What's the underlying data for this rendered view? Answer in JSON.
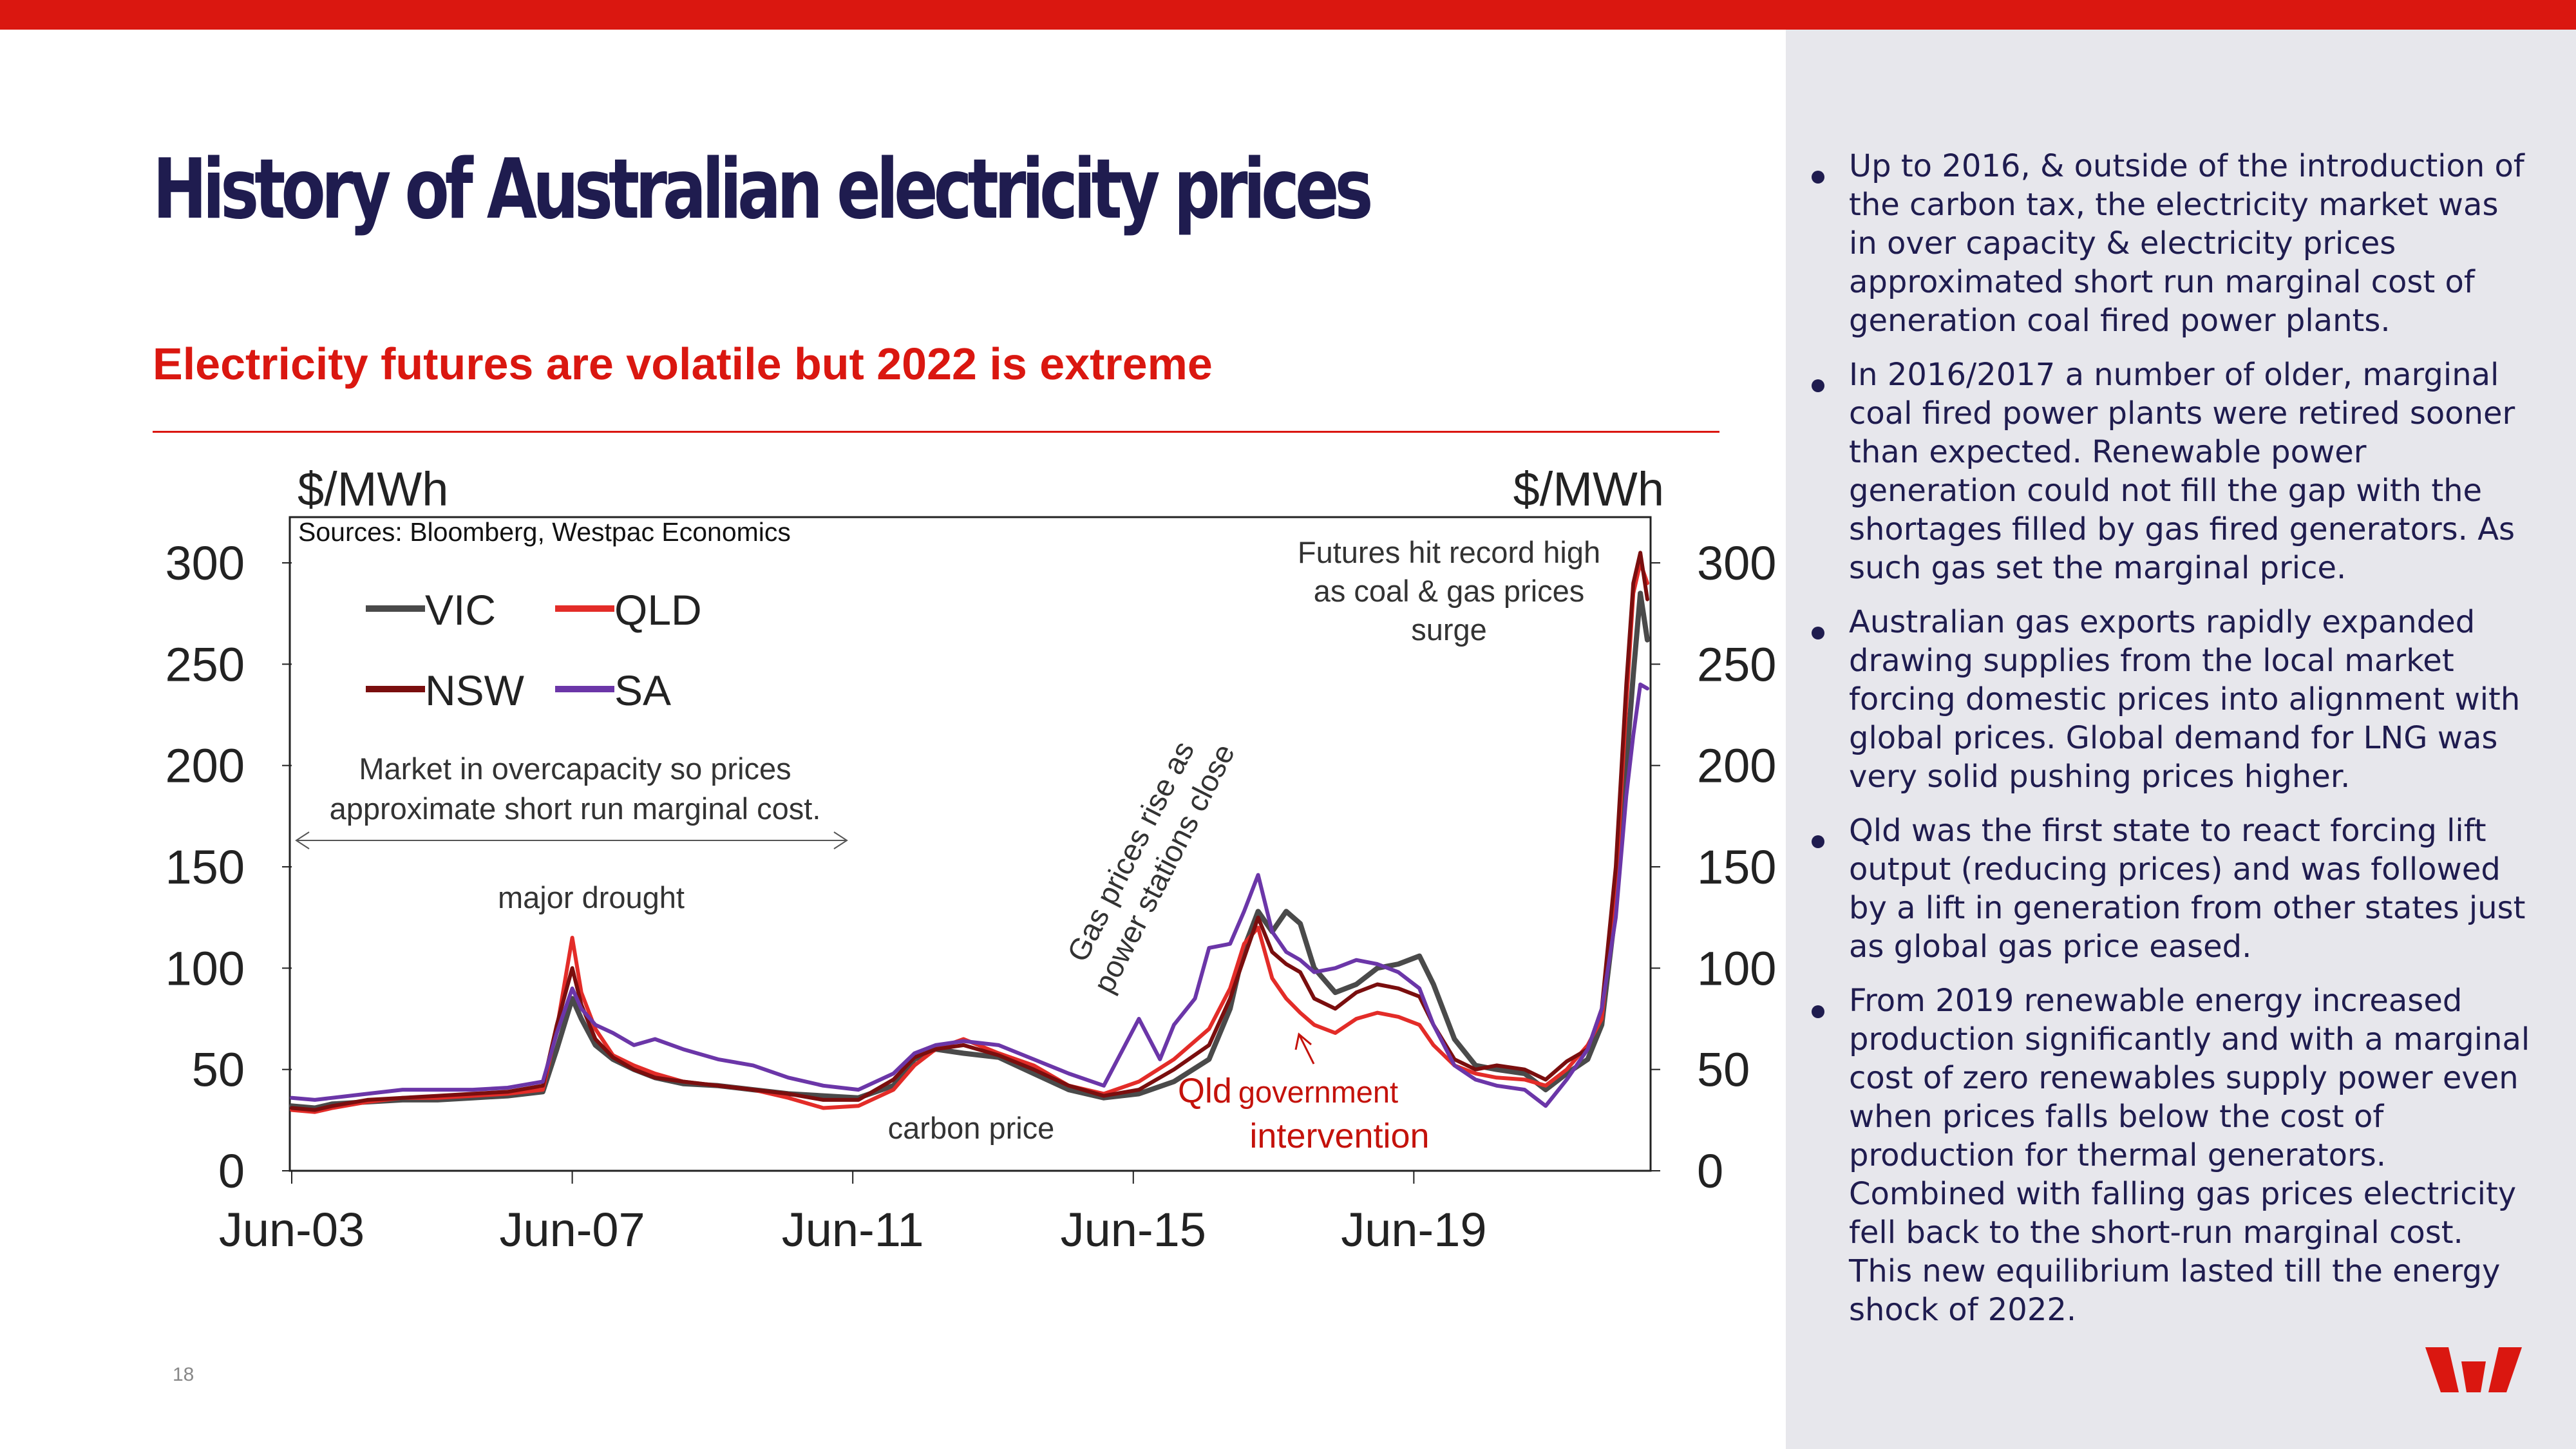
{
  "header": {
    "title": "History of Australian electricity prices"
  },
  "chart_section": {
    "subtitle": "Electricity futures are volatile but 2022 is extreme"
  },
  "colors": {
    "brand_red": "#DA1710",
    "title_navy": "#1F1C4F",
    "panel_grey": "#E7E7EC",
    "VIC": "#4A4A4A",
    "QLD": "#E32C28",
    "NSW": "#7A0E0E",
    "SA": "#6B36A8"
  },
  "page": {
    "number": "18"
  },
  "logo": {
    "icon": "westpac-w-logo"
  },
  "commentary": [
    "Up to 2016, & outside of the introduction of the carbon tax, the electricity market was in over capacity & electricity prices approximated short run marginal cost of generation coal fired power plants.",
    "In 2016/2017 a number of older, marginal coal fired power plants were retired sooner than expected. Renewable power generation could not fill the gap with the shortages filled by gas fired generators. As such gas set the marginal price.",
    "Australian gas exports rapidly expanded drawing supplies from the  local market forcing domestic prices into alignment with global prices. Global demand for LNG was very solid pushing prices higher.",
    "Qld was the first state to react forcing lift output (reducing prices) and was followed by a lift in generation from other states just as global gas price eased.",
    "From 2019 renewable energy increased production significantly and with a marginal cost of zero renewables supply power even when prices falls below the cost of production for thermal generators. Combined with falling gas prices electricity fell back to the short-run marginal cost. This new equilibrium lasted till the energy shock of 2022."
  ],
  "chart_data": {
    "type": "line",
    "source": "Sources: Bloomberg, Westpac Economics",
    "ylabel_left": "$/MWh",
    "ylabel_right": "$/MWh",
    "ylim": [
      0,
      300
    ],
    "yticks": [
      "0",
      "50",
      "100",
      "150",
      "200",
      "250",
      "300"
    ],
    "xlim": [
      2003.42,
      2022.75
    ],
    "xticks": [
      {
        "x": 2003.42,
        "label": "Jun-03"
      },
      {
        "x": 2007.42,
        "label": "Jun-07"
      },
      {
        "x": 2011.42,
        "label": "Jun-11"
      },
      {
        "x": 2015.42,
        "label": "Jun-15"
      },
      {
        "x": 2019.42,
        "label": "Jun-19"
      }
    ],
    "legend": {
      "placement": "top-left"
    },
    "grid": false,
    "series": [
      {
        "name": "VIC",
        "color": "#4A4A4A",
        "values": [
          [
            2003.42,
            32
          ],
          [
            2003.75,
            31
          ],
          [
            2004.0,
            33
          ],
          [
            2004.5,
            34
          ],
          [
            2005.0,
            35
          ],
          [
            2005.5,
            35
          ],
          [
            2006.0,
            36
          ],
          [
            2006.5,
            37
          ],
          [
            2007.0,
            39
          ],
          [
            2007.2,
            60
          ],
          [
            2007.42,
            85
          ],
          [
            2007.55,
            75
          ],
          [
            2007.75,
            62
          ],
          [
            2008.0,
            55
          ],
          [
            2008.3,
            50
          ],
          [
            2008.6,
            46
          ],
          [
            2009.0,
            43
          ],
          [
            2009.5,
            42
          ],
          [
            2010.0,
            40
          ],
          [
            2010.5,
            38
          ],
          [
            2011.0,
            37
          ],
          [
            2011.5,
            36
          ],
          [
            2012.0,
            42
          ],
          [
            2012.3,
            55
          ],
          [
            2012.6,
            60
          ],
          [
            2013.0,
            58
          ],
          [
            2013.5,
            56
          ],
          [
            2014.0,
            48
          ],
          [
            2014.5,
            40
          ],
          [
            2015.0,
            36
          ],
          [
            2015.5,
            38
          ],
          [
            2016.0,
            44
          ],
          [
            2016.5,
            55
          ],
          [
            2016.8,
            80
          ],
          [
            2017.0,
            110
          ],
          [
            2017.2,
            128
          ],
          [
            2017.4,
            118
          ],
          [
            2017.6,
            128
          ],
          [
            2017.8,
            122
          ],
          [
            2018.0,
            100
          ],
          [
            2018.3,
            88
          ],
          [
            2018.6,
            92
          ],
          [
            2018.9,
            100
          ],
          [
            2019.2,
            102
          ],
          [
            2019.5,
            106
          ],
          [
            2019.7,
            92
          ],
          [
            2020.0,
            65
          ],
          [
            2020.3,
            52
          ],
          [
            2020.6,
            50
          ],
          [
            2021.0,
            48
          ],
          [
            2021.3,
            40
          ],
          [
            2021.6,
            48
          ],
          [
            2021.9,
            55
          ],
          [
            2022.1,
            72
          ],
          [
            2022.3,
            130
          ],
          [
            2022.45,
            200
          ],
          [
            2022.55,
            245
          ],
          [
            2022.65,
            285
          ],
          [
            2022.75,
            262
          ]
        ]
      },
      {
        "name": "QLD",
        "color": "#E32C28",
        "values": [
          [
            2003.42,
            30
          ],
          [
            2003.75,
            29
          ],
          [
            2004.0,
            31
          ],
          [
            2004.5,
            34
          ],
          [
            2005.0,
            36
          ],
          [
            2005.5,
            36
          ],
          [
            2006.0,
            37
          ],
          [
            2006.5,
            38
          ],
          [
            2007.0,
            40
          ],
          [
            2007.2,
            70
          ],
          [
            2007.42,
            115
          ],
          [
            2007.55,
            88
          ],
          [
            2007.75,
            70
          ],
          [
            2008.0,
            57
          ],
          [
            2008.3,
            52
          ],
          [
            2008.6,
            48
          ],
          [
            2009.0,
            44
          ],
          [
            2009.5,
            42
          ],
          [
            2010.0,
            40
          ],
          [
            2010.5,
            36
          ],
          [
            2011.0,
            31
          ],
          [
            2011.5,
            32
          ],
          [
            2012.0,
            40
          ],
          [
            2012.3,
            52
          ],
          [
            2012.6,
            60
          ],
          [
            2013.0,
            65
          ],
          [
            2013.5,
            58
          ],
          [
            2014.0,
            52
          ],
          [
            2014.5,
            42
          ],
          [
            2015.0,
            38
          ],
          [
            2015.5,
            44
          ],
          [
            2016.0,
            55
          ],
          [
            2016.5,
            70
          ],
          [
            2016.8,
            90
          ],
          [
            2017.0,
            112
          ],
          [
            2017.2,
            120
          ],
          [
            2017.4,
            95
          ],
          [
            2017.6,
            85
          ],
          [
            2017.8,
            78
          ],
          [
            2018.0,
            72
          ],
          [
            2018.3,
            68
          ],
          [
            2018.6,
            75
          ],
          [
            2018.9,
            78
          ],
          [
            2019.2,
            76
          ],
          [
            2019.5,
            72
          ],
          [
            2019.7,
            62
          ],
          [
            2020.0,
            52
          ],
          [
            2020.3,
            48
          ],
          [
            2020.6,
            46
          ],
          [
            2021.0,
            45
          ],
          [
            2021.3,
            42
          ],
          [
            2021.6,
            50
          ],
          [
            2021.9,
            62
          ],
          [
            2022.1,
            75
          ],
          [
            2022.3,
            140
          ],
          [
            2022.45,
            230
          ],
          [
            2022.55,
            285
          ],
          [
            2022.65,
            300
          ],
          [
            2022.75,
            290
          ]
        ]
      },
      {
        "name": "NSW",
        "color": "#7A0E0E",
        "values": [
          [
            2003.42,
            31
          ],
          [
            2003.75,
            30
          ],
          [
            2004.0,
            32
          ],
          [
            2004.5,
            35
          ],
          [
            2005.0,
            36
          ],
          [
            2005.5,
            37
          ],
          [
            2006.0,
            38
          ],
          [
            2006.5,
            39
          ],
          [
            2007.0,
            42
          ],
          [
            2007.2,
            72
          ],
          [
            2007.42,
            100
          ],
          [
            2007.55,
            82
          ],
          [
            2007.75,
            65
          ],
          [
            2008.0,
            56
          ],
          [
            2008.3,
            50
          ],
          [
            2008.6,
            46
          ],
          [
            2009.0,
            44
          ],
          [
            2009.5,
            42
          ],
          [
            2010.0,
            40
          ],
          [
            2010.5,
            38
          ],
          [
            2011.0,
            35
          ],
          [
            2011.5,
            35
          ],
          [
            2012.0,
            45
          ],
          [
            2012.3,
            56
          ],
          [
            2012.6,
            60
          ],
          [
            2013.0,
            62
          ],
          [
            2013.5,
            57
          ],
          [
            2014.0,
            50
          ],
          [
            2014.5,
            42
          ],
          [
            2015.0,
            37
          ],
          [
            2015.5,
            40
          ],
          [
            2016.0,
            50
          ],
          [
            2016.5,
            62
          ],
          [
            2016.8,
            85
          ],
          [
            2017.0,
            105
          ],
          [
            2017.2,
            125
          ],
          [
            2017.4,
            108
          ],
          [
            2017.6,
            102
          ],
          [
            2017.8,
            98
          ],
          [
            2018.0,
            85
          ],
          [
            2018.3,
            80
          ],
          [
            2018.6,
            88
          ],
          [
            2018.9,
            92
          ],
          [
            2019.2,
            90
          ],
          [
            2019.5,
            86
          ],
          [
            2019.7,
            72
          ],
          [
            2020.0,
            55
          ],
          [
            2020.3,
            50
          ],
          [
            2020.6,
            52
          ],
          [
            2021.0,
            50
          ],
          [
            2021.3,
            45
          ],
          [
            2021.6,
            54
          ],
          [
            2021.9,
            60
          ],
          [
            2022.1,
            80
          ],
          [
            2022.3,
            150
          ],
          [
            2022.45,
            240
          ],
          [
            2022.55,
            290
          ],
          [
            2022.65,
            305
          ],
          [
            2022.75,
            282
          ]
        ]
      },
      {
        "name": "SA",
        "color": "#6B36A8",
        "values": [
          [
            2003.42,
            36
          ],
          [
            2003.75,
            35
          ],
          [
            2004.0,
            36
          ],
          [
            2004.5,
            38
          ],
          [
            2005.0,
            40
          ],
          [
            2005.5,
            40
          ],
          [
            2006.0,
            40
          ],
          [
            2006.5,
            41
          ],
          [
            2007.0,
            44
          ],
          [
            2007.2,
            68
          ],
          [
            2007.42,
            90
          ],
          [
            2007.55,
            80
          ],
          [
            2007.75,
            72
          ],
          [
            2008.0,
            68
          ],
          [
            2008.3,
            62
          ],
          [
            2008.6,
            65
          ],
          [
            2009.0,
            60
          ],
          [
            2009.5,
            55
          ],
          [
            2010.0,
            52
          ],
          [
            2010.5,
            46
          ],
          [
            2011.0,
            42
          ],
          [
            2011.5,
            40
          ],
          [
            2012.0,
            48
          ],
          [
            2012.3,
            58
          ],
          [
            2012.6,
            62
          ],
          [
            2013.0,
            64
          ],
          [
            2013.5,
            62
          ],
          [
            2014.0,
            55
          ],
          [
            2014.5,
            48
          ],
          [
            2015.0,
            42
          ],
          [
            2015.5,
            75
          ],
          [
            2015.8,
            55
          ],
          [
            2016.0,
            72
          ],
          [
            2016.3,
            85
          ],
          [
            2016.5,
            110
          ],
          [
            2016.8,
            112
          ],
          [
            2017.0,
            128
          ],
          [
            2017.2,
            146
          ],
          [
            2017.4,
            118
          ],
          [
            2017.6,
            108
          ],
          [
            2017.8,
            104
          ],
          [
            2018.0,
            98
          ],
          [
            2018.3,
            100
          ],
          [
            2018.6,
            104
          ],
          [
            2018.9,
            102
          ],
          [
            2019.2,
            98
          ],
          [
            2019.5,
            90
          ],
          [
            2019.7,
            72
          ],
          [
            2020.0,
            52
          ],
          [
            2020.3,
            45
          ],
          [
            2020.6,
            42
          ],
          [
            2021.0,
            40
          ],
          [
            2021.3,
            32
          ],
          [
            2021.6,
            45
          ],
          [
            2021.9,
            60
          ],
          [
            2022.1,
            80
          ],
          [
            2022.3,
            125
          ],
          [
            2022.45,
            185
          ],
          [
            2022.55,
            215
          ],
          [
            2022.65,
            240
          ],
          [
            2022.75,
            238
          ]
        ]
      }
    ],
    "annotations": {
      "overcapacity": [
        "Market in overcapacity so prices",
        "approximate short run marginal cost."
      ],
      "drought": "major drought",
      "carbon": "carbon price",
      "gas": [
        "Gas prices rise as",
        "power stations close"
      ],
      "record": [
        "Futures hit record high",
        "as coal & gas prices",
        "surge"
      ],
      "qld_part1": "Qld",
      "qld_part2": "government",
      "qld_part3": "intervention"
    }
  }
}
